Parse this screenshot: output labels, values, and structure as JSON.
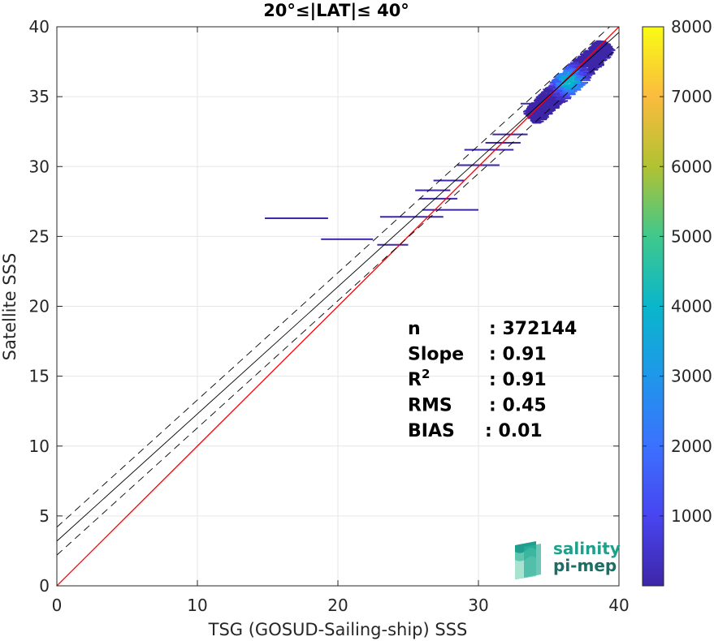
{
  "chart_data": {
    "type": "heatmap",
    "title": "20°≤|LAT|≤ 40°",
    "xlabel": "TSG (GOSUD-Sailing-ship) SSS",
    "ylabel": "Satellite SSS",
    "xlim": [
      0,
      40
    ],
    "ylim": [
      0,
      40
    ],
    "xticks": [
      "0",
      "10",
      "20",
      "30",
      "40"
    ],
    "yticks": [
      "0",
      "5",
      "10",
      "15",
      "20",
      "25",
      "30",
      "35",
      "40"
    ],
    "grid": true,
    "colorbar": {
      "range": [
        0,
        8000
      ],
      "ticks": [
        "1000",
        "2000",
        "3000",
        "4000",
        "5000",
        "6000",
        "7000",
        "8000"
      ],
      "tick_values": [
        1000,
        2000,
        3000,
        4000,
        5000,
        6000,
        7000,
        8000
      ]
    },
    "lines": {
      "identity": {
        "slope": 1,
        "intercept": 0,
        "color": "#ff0000"
      },
      "fit": {
        "slope": 0.91,
        "intercept": 3.2,
        "color": "#000000"
      },
      "fit_upper": {
        "slope": 0.91,
        "intercept": 4.2,
        "color": "#000000",
        "dash": true
      },
      "fit_lower": {
        "slope": 0.91,
        "intercept": 2.2,
        "color": "#000000",
        "dash": true
      }
    },
    "density": {
      "core_center": [
        36.2,
        36.1
      ],
      "peak_count": 4500,
      "streaks": [
        {
          "x0": 14.8,
          "x1": 19.3,
          "y": 26.3
        },
        {
          "x0": 18.8,
          "x1": 22.5,
          "y": 24.8
        },
        {
          "x0": 23.0,
          "x1": 27.5,
          "y": 26.4
        },
        {
          "x0": 22.8,
          "x1": 25.0,
          "y": 24.4
        },
        {
          "x0": 25.5,
          "x1": 28.0,
          "y": 28.3
        },
        {
          "x0": 25.8,
          "x1": 28.5,
          "y": 27.7
        },
        {
          "x0": 26.0,
          "x1": 30.0,
          "y": 26.9
        },
        {
          "x0": 26.8,
          "x1": 29.0,
          "y": 29.0
        },
        {
          "x0": 28.5,
          "x1": 31.5,
          "y": 30.1
        },
        {
          "x0": 29.0,
          "x1": 32.5,
          "y": 31.2
        },
        {
          "x0": 31.0,
          "x1": 33.5,
          "y": 32.3
        },
        {
          "x0": 30.5,
          "x1": 33.0,
          "y": 31.7
        },
        {
          "x0": 33.0,
          "x1": 34.5,
          "y": 34.5
        }
      ]
    },
    "stats": [
      {
        "label": "n",
        "value": ": 372144"
      },
      {
        "label": "Slope",
        "value": ": 0.91"
      },
      {
        "label": "R",
        "sup": "2",
        "value": ": 0.91"
      },
      {
        "label": "RMS",
        "value": ": 0.45"
      },
      {
        "label": "BIAS",
        "value": ": 0.01"
      }
    ]
  },
  "logo": {
    "line1": "salinity",
    "line2": "pi-mep"
  }
}
